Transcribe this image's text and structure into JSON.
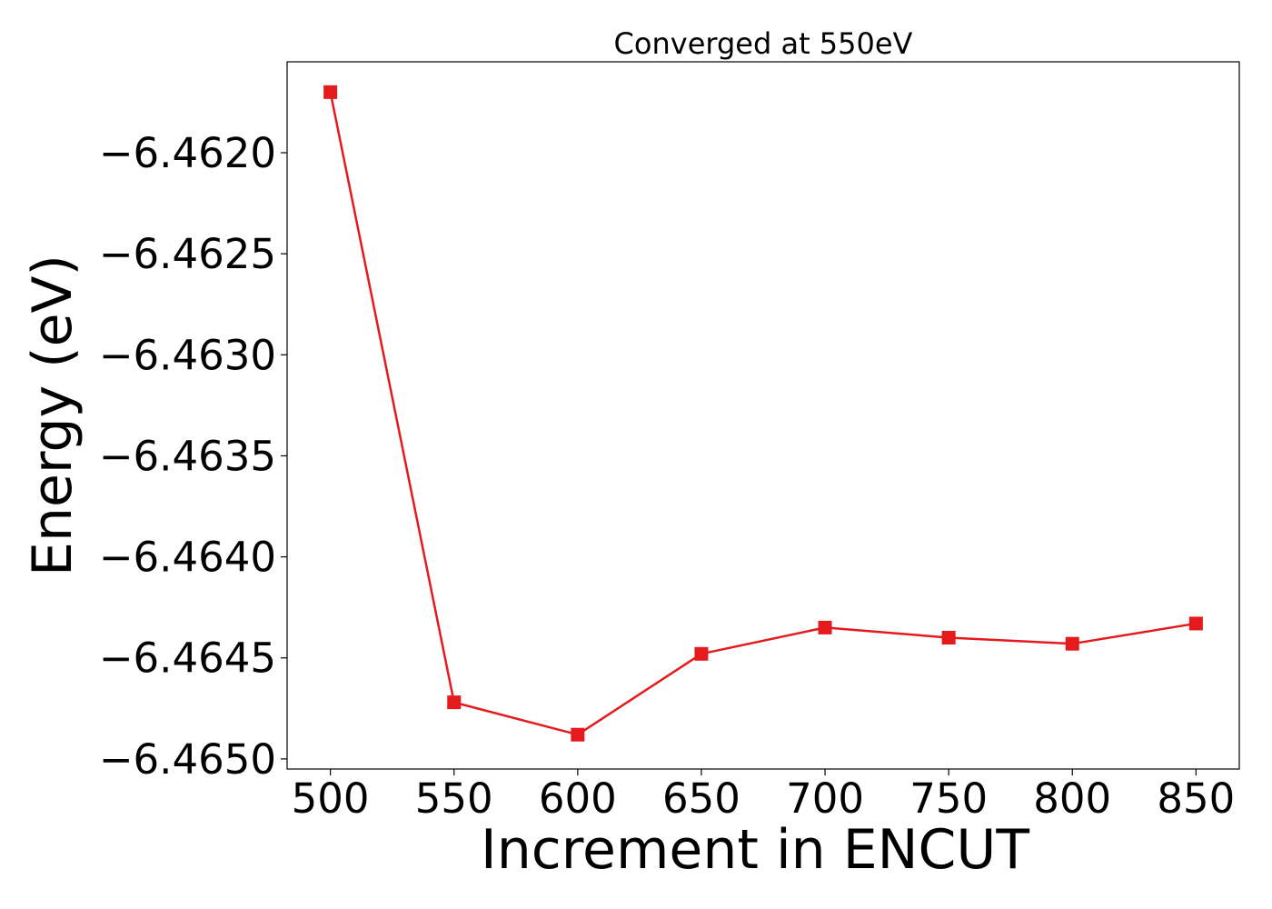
{
  "chart_data": {
    "type": "line",
    "title": "Converged at 550eV",
    "xlabel": "Increment in ENCUT",
    "ylabel": "Energy (eV)",
    "x": [
      500,
      550,
      600,
      650,
      700,
      750,
      800,
      850
    ],
    "series": [
      {
        "values": [
          -6.4617,
          -6.46472,
          -6.46488,
          -6.46448,
          -6.46435,
          -6.4644,
          -6.46443,
          -6.46433
        ],
        "color": "#e41a1c",
        "marker": "square"
      }
    ],
    "xticks": [
      500,
      550,
      600,
      650,
      700,
      750,
      800,
      850
    ],
    "xtick_labels": [
      "500",
      "550",
      "600",
      "650",
      "700",
      "750",
      "800",
      "850"
    ],
    "yticks": [
      -6.462,
      -6.4625,
      -6.463,
      -6.4635,
      -6.464,
      -6.4645,
      -6.465
    ],
    "ytick_labels": [
      "−6.4620",
      "−6.4625",
      "−6.4630",
      "−6.4635",
      "−6.4640",
      "−6.4645",
      "−6.4650"
    ],
    "xlim": [
      482.5,
      867.5
    ],
    "ylim": [
      -6.46505,
      -6.46155
    ],
    "grid": false,
    "legend": "none"
  }
}
